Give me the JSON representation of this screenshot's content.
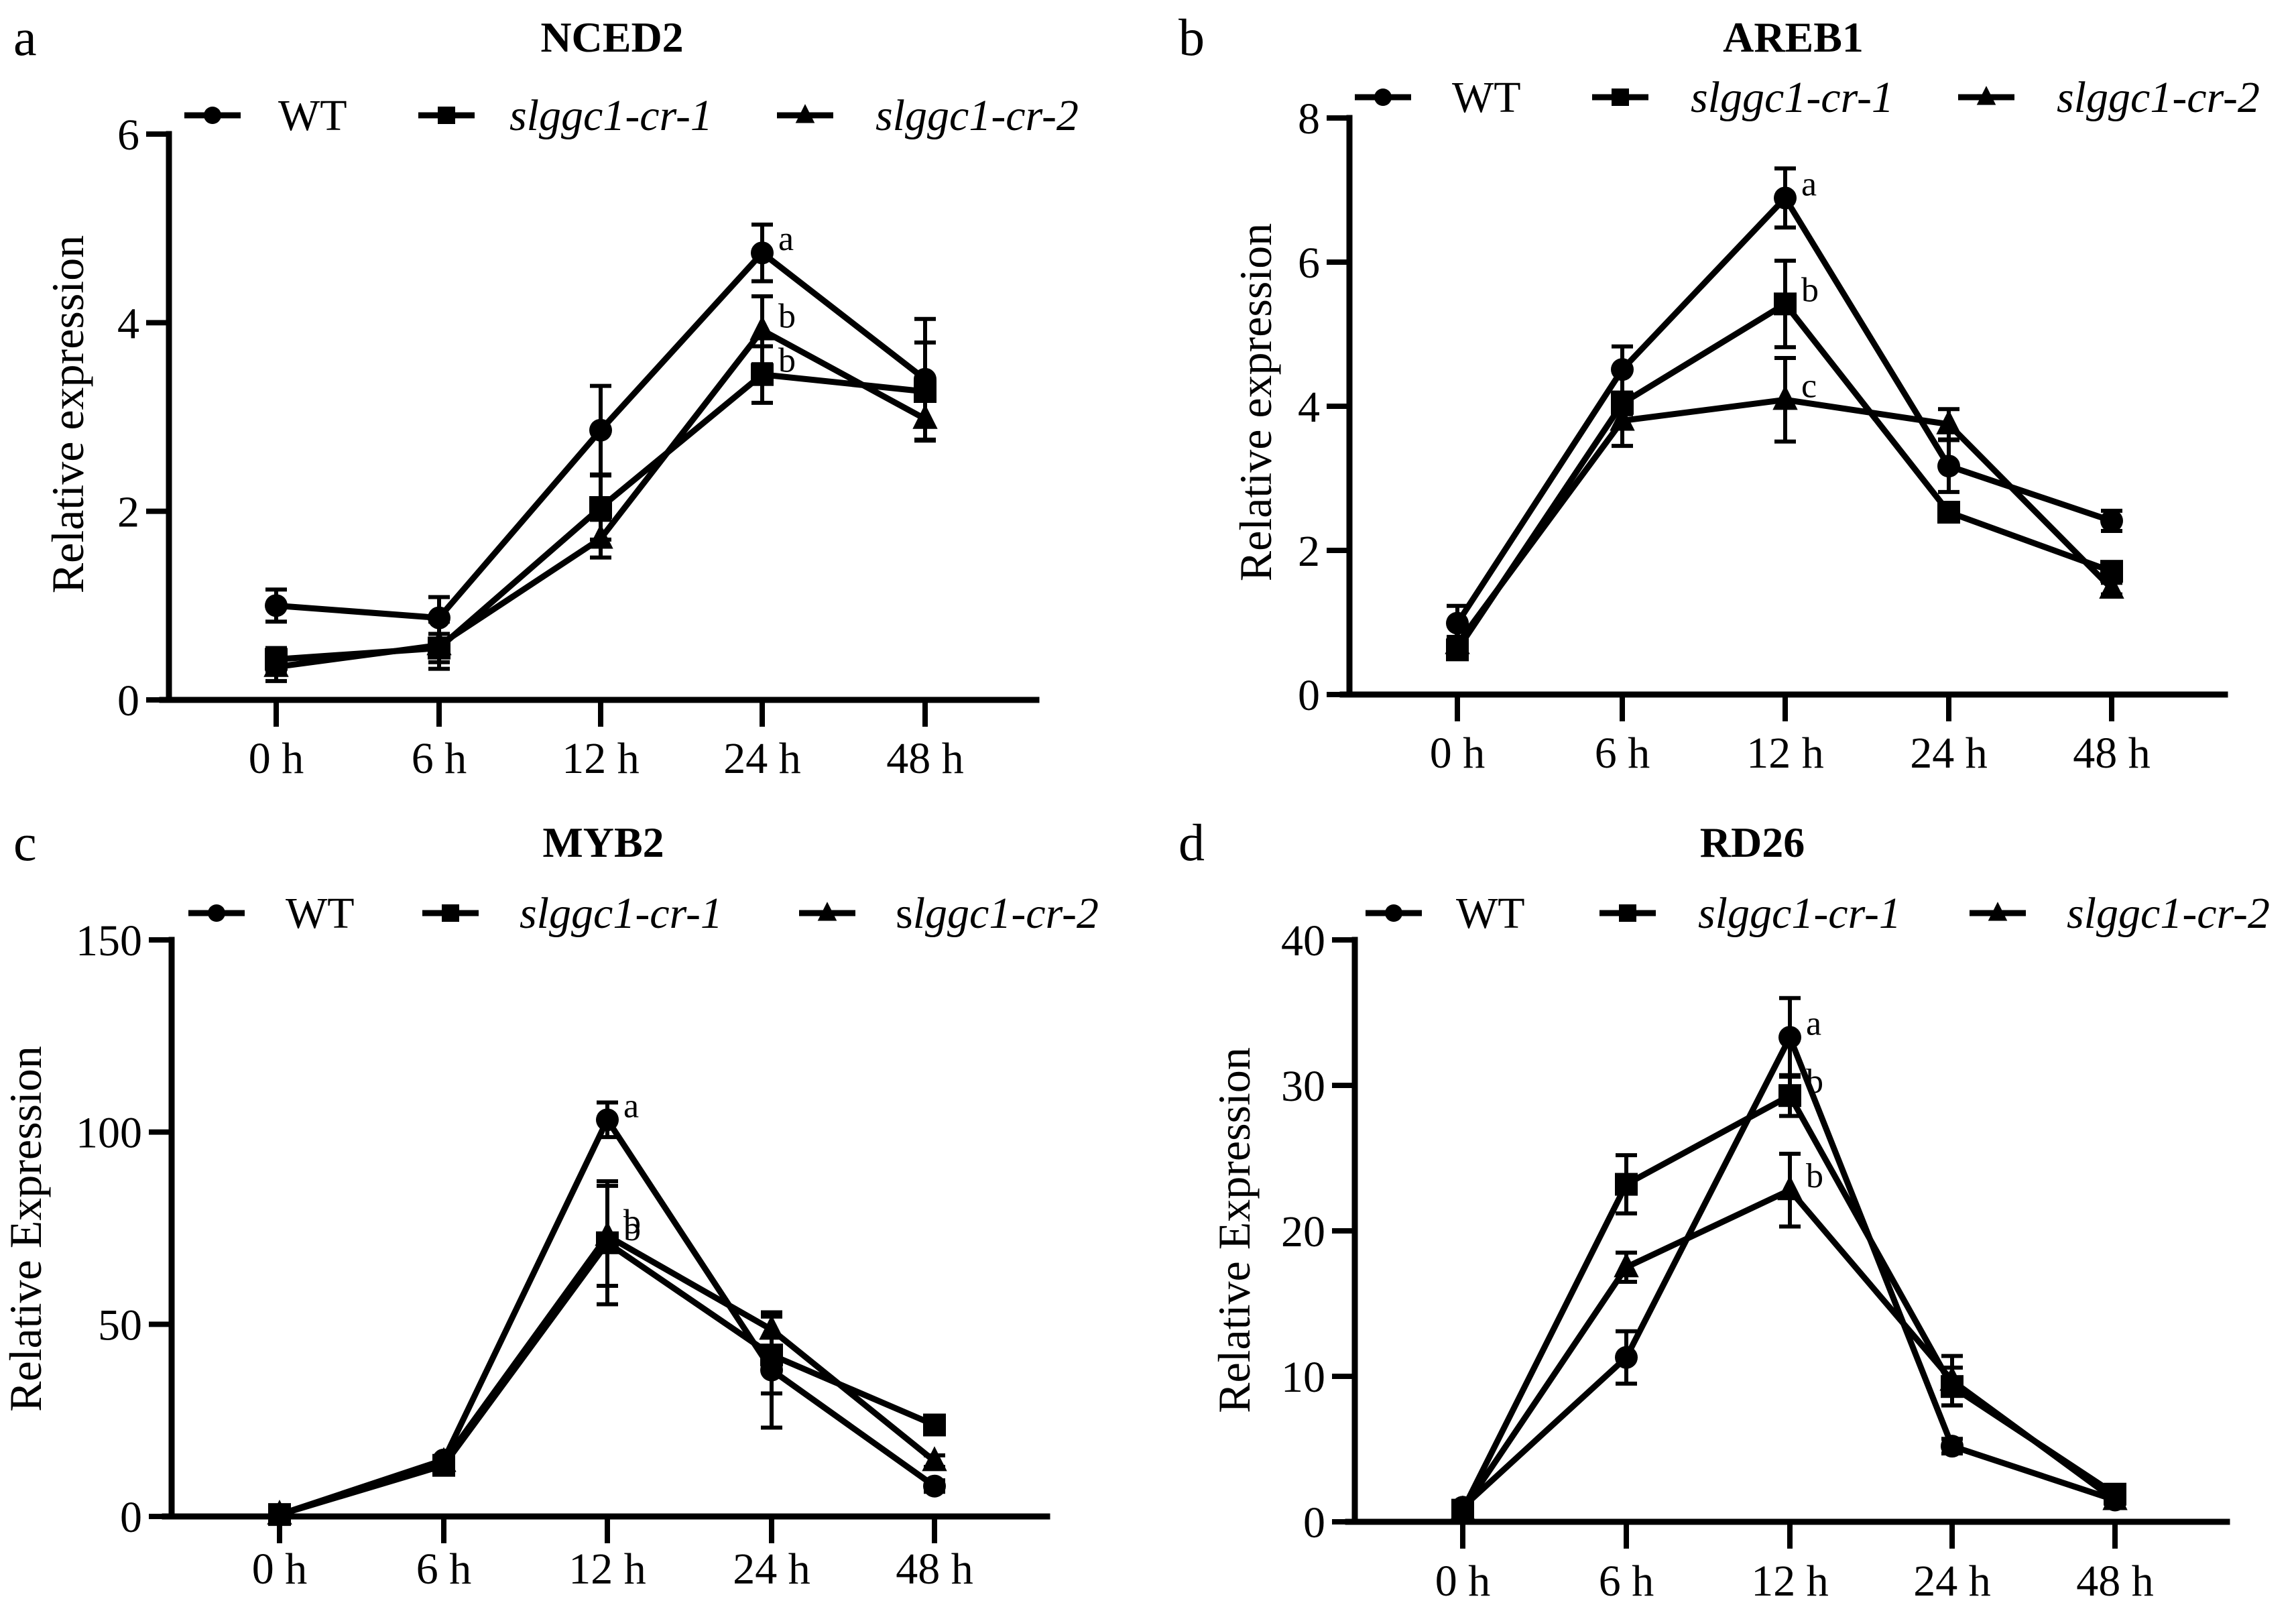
{
  "figure": {
    "panels": [
      "a",
      "b",
      "c",
      "d"
    ]
  },
  "chart_data": [
    {
      "panel_letter": "a",
      "type": "line",
      "title": "NCED2",
      "xlabel": "",
      "ylabel": "Relative expression",
      "categories": [
        "0 h",
        "6 h",
        "12 h",
        "24 h",
        "48 h"
      ],
      "ylim": [
        0,
        6
      ],
      "yticks": [
        0,
        2,
        4,
        6
      ],
      "ytick_labels": [
        "0",
        "2",
        "4",
        "6"
      ],
      "grid": false,
      "legend_position": "top",
      "series": [
        {
          "name": "WT",
          "italic": false,
          "marker": "circle",
          "values": [
            1.0,
            0.87,
            2.86,
            4.74,
            3.4
          ],
          "errors": [
            0.17,
            0.22,
            0.47,
            0.3,
            0.64
          ]
        },
        {
          "name": "slggc1-cr-1",
          "italic": true,
          "marker": "square",
          "values": [
            0.43,
            0.55,
            2.04,
            3.45,
            3.27
          ],
          "errors": [
            0.12,
            0.15,
            0.34,
            0.3,
            0.52
          ]
        },
        {
          "name": "slggc1-cr-2",
          "italic": true,
          "marker": "triangle",
          "values": [
            0.35,
            0.58,
            1.71,
            3.92,
            2.98
          ],
          "errors": [
            0.15,
            0.25,
            0.2,
            0.36,
            0.23
          ]
        }
      ],
      "annotations": [
        {
          "category": "24 h",
          "value": 4.74,
          "text": "a"
        },
        {
          "category": "24 h",
          "value": 3.92,
          "text": "b"
        },
        {
          "category": "24 h",
          "value": 3.45,
          "text": "b"
        }
      ]
    },
    {
      "panel_letter": "b",
      "type": "line",
      "title": "AREB1",
      "xlabel": "",
      "ylabel": "Relative expression",
      "categories": [
        "0 h",
        "6 h",
        "12 h",
        "24 h",
        "48 h"
      ],
      "ylim": [
        0,
        8
      ],
      "yticks": [
        0,
        2,
        4,
        6,
        8
      ],
      "ytick_labels": [
        "0",
        "2",
        "4",
        "6",
        "8"
      ],
      "grid": false,
      "legend_position": "top",
      "series": [
        {
          "name": "WT",
          "italic": false,
          "marker": "circle",
          "values": [
            0.99,
            4.51,
            6.89,
            3.17,
            2.41
          ],
          "errors": [
            0.24,
            0.32,
            0.41,
            0.36,
            0.14
          ]
        },
        {
          "name": "slggc1-cr-1",
          "italic": true,
          "marker": "square",
          "values": [
            0.62,
            4.04,
            5.42,
            2.53,
            1.71
          ],
          "errors": [
            0.1,
            0.15,
            0.6,
            0.08,
            0.1
          ]
        },
        {
          "name": "slggc1-cr-2",
          "italic": true,
          "marker": "triangle",
          "values": [
            0.7,
            3.8,
            4.09,
            3.75,
            1.47
          ],
          "errors": [
            0.1,
            0.35,
            0.58,
            0.21,
            0.08
          ]
        }
      ],
      "annotations": [
        {
          "category": "12 h",
          "value": 6.89,
          "text": "a"
        },
        {
          "category": "12 h",
          "value": 5.42,
          "text": "b"
        },
        {
          "category": "12 h",
          "value": 4.09,
          "text": "c"
        }
      ]
    },
    {
      "panel_letter": "c",
      "type": "line",
      "title": "MYB2",
      "xlabel": "",
      "ylabel": "Relative Expression",
      "categories": [
        "0 h",
        "6 h",
        "12 h",
        "24 h",
        "48 h"
      ],
      "ylim": [
        0,
        150
      ],
      "yticks": [
        0,
        50,
        100,
        150
      ],
      "ytick_labels": [
        "0",
        "50",
        "100",
        "150"
      ],
      "grid": false,
      "legend_position": "top",
      "series": [
        {
          "name": "WT",
          "italic": false,
          "marker": "circle",
          "values": [
            0.5,
            14.7,
            103.2,
            38.1,
            7.9
          ],
          "errors": [
            0.3,
            1.0,
            4.5,
            15.0,
            1.5
          ]
        },
        {
          "name": "slggc1-cr-1",
          "italic": true,
          "marker": "square",
          "values": [
            0.5,
            13.3,
            71.2,
            42.0,
            23.8
          ],
          "errors": [
            0.3,
            1.0,
            16.0,
            10.0,
            1.0
          ]
        },
        {
          "name": "slggc1-cr-2",
          "italic": true,
          "italic_partial": "s upright",
          "marker": "triangle",
          "values": [
            0.5,
            14.2,
            73.0,
            48.6,
            14.4
          ],
          "errors": [
            0.3,
            1.0,
            13.0,
            4.4,
            1.5
          ]
        }
      ],
      "legend_labels": [
        "WT",
        "slggc1-cr-1",
        "slggc1-cr-2"
      ],
      "annotations": [
        {
          "category": "12 h",
          "value": 103.2,
          "text": "a"
        },
        {
          "category": "12 h",
          "value": 73.0,
          "text": "b"
        },
        {
          "category": "12 h",
          "value": 71.2,
          "text": "b"
        }
      ]
    },
    {
      "panel_letter": "d",
      "type": "line",
      "title": "RD26",
      "xlabel": "",
      "ylabel": "Relative Expression",
      "categories": [
        "0 h",
        "6 h",
        "12 h",
        "24 h",
        "48 h"
      ],
      "ylim": [
        0,
        40
      ],
      "yticks": [
        0,
        10,
        20,
        30,
        40
      ],
      "ytick_labels": [
        "0",
        "10",
        "20",
        "30",
        "40"
      ],
      "grid": false,
      "legend_position": "top",
      "series": [
        {
          "name": "WT",
          "italic": false,
          "marker": "circle",
          "values": [
            1.0,
            11.3,
            33.3,
            5.2,
            1.5
          ],
          "errors": [
            0.3,
            1.8,
            2.7,
            0.5,
            0.3
          ]
        },
        {
          "name": "slggc1-cr-1",
          "italic": true,
          "marker": "square",
          "values": [
            0.8,
            23.2,
            29.3,
            9.3,
            1.9
          ],
          "errors": [
            0.3,
            2.0,
            1.4,
            1.3,
            0.3
          ]
        },
        {
          "name": "slggc1-cr-2",
          "italic": true,
          "marker": "triangle",
          "values": [
            0.8,
            17.5,
            22.8,
            9.7,
            1.5
          ],
          "errors": [
            0.3,
            1.0,
            2.5,
            1.7,
            0.3
          ]
        }
      ],
      "annotations": [
        {
          "category": "12 h",
          "value": 33.3,
          "text": "a"
        },
        {
          "category": "12 h",
          "value": 29.3,
          "text": "b"
        },
        {
          "category": "12 h",
          "value": 22.8,
          "text": "b"
        }
      ]
    }
  ]
}
